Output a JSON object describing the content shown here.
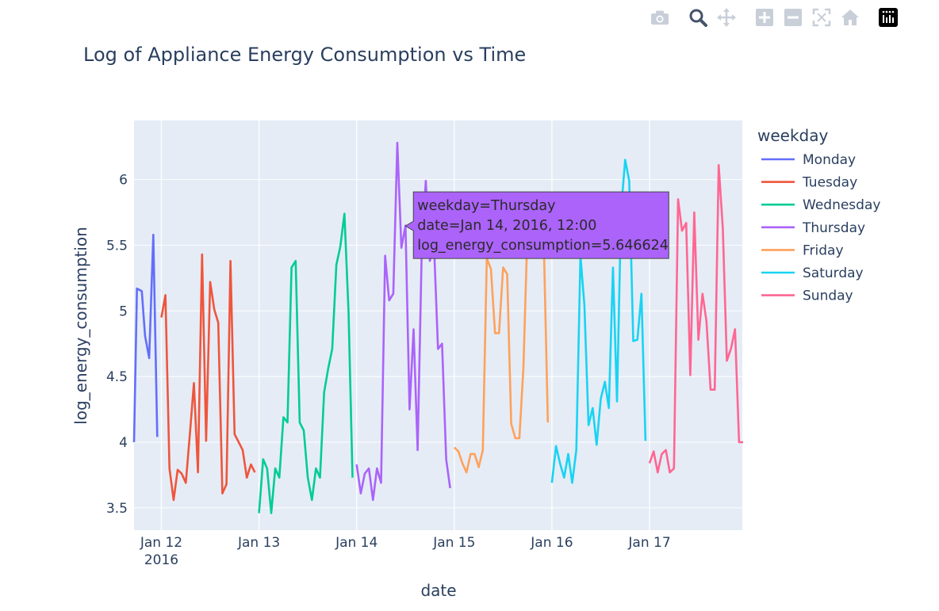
{
  "modebar": {
    "buttons": [
      "camera-icon",
      "zoom-icon",
      "pan-icon",
      "zoom-in-icon",
      "zoom-out-icon",
      "autoscale-icon",
      "reset-axes-icon",
      "plotly-logo"
    ]
  },
  "chart_data": {
    "type": "line",
    "title": "Log of Appliance Energy Consumption vs Time",
    "xlabel": "date",
    "ylabel": "log_energy_consumption",
    "xlim_days": [
      -0.28,
      5.95
    ],
    "ylim": [
      3.33,
      6.45
    ],
    "x_ticks": [
      {
        "day": 0,
        "label": "Jan 12",
        "sublabel": "2016"
      },
      {
        "day": 1,
        "label": "Jan 13"
      },
      {
        "day": 2,
        "label": "Jan 14"
      },
      {
        "day": 3,
        "label": "Jan 15"
      },
      {
        "day": 4,
        "label": "Jan 16"
      },
      {
        "day": 5,
        "label": "Jan 17"
      }
    ],
    "y_ticks": [
      3.5,
      4,
      4.5,
      5,
      5.5,
      6
    ],
    "y_tick_labels": [
      "3.5",
      "4",
      "4.5",
      "5",
      "5.5",
      "6"
    ],
    "legend_title": "weekday",
    "x_unit": "days since Jan 12, 2016 00:00 (hourly samples)",
    "series": [
      {
        "name": "Monday",
        "color": "#636efa",
        "x": [
          -0.28,
          -0.25,
          -0.2,
          -0.167,
          -0.125,
          -0.083,
          -0.042,
          0.0
        ],
        "y": [
          4.0,
          5.17,
          5.15,
          4.81,
          4.64,
          5.58,
          4.04,
          null
        ]
      },
      {
        "name": "Tuesday",
        "color": "#EF553B",
        "x": [
          0.0,
          0.042,
          0.083,
          0.125,
          0.167,
          0.208,
          0.25,
          0.292,
          0.333,
          0.375,
          0.417,
          0.458,
          0.5,
          0.542,
          0.583,
          0.625,
          0.667,
          0.708,
          0.75,
          0.792,
          0.833,
          0.875,
          0.917,
          0.958
        ],
        "y": [
          4.95,
          5.12,
          3.8,
          3.56,
          3.79,
          3.76,
          3.69,
          4.06,
          4.45,
          3.77,
          5.43,
          4.01,
          5.22,
          5.01,
          4.91,
          3.61,
          3.68,
          5.38,
          4.06,
          4.0,
          3.94,
          3.73,
          3.83,
          3.77
        ]
      },
      {
        "name": "Wednesday",
        "color": "#00cc96",
        "x": [
          1.0,
          1.042,
          1.083,
          1.125,
          1.167,
          1.208,
          1.25,
          1.292,
          1.333,
          1.375,
          1.417,
          1.458,
          1.5,
          1.542,
          1.583,
          1.625,
          1.667,
          1.708,
          1.75,
          1.792,
          1.833,
          1.875,
          1.917,
          1.958
        ],
        "y": [
          3.46,
          3.87,
          3.8,
          3.46,
          3.8,
          3.73,
          4.19,
          4.15,
          5.33,
          5.38,
          4.15,
          4.09,
          3.73,
          3.56,
          3.8,
          3.73,
          4.38,
          4.56,
          4.71,
          5.35,
          5.49,
          5.74,
          4.99,
          3.73
        ]
      },
      {
        "name": "Thursday",
        "color": "#ab63fa",
        "x": [
          2.0,
          2.042,
          2.083,
          2.125,
          2.167,
          2.208,
          2.25,
          2.292,
          2.333,
          2.375,
          2.417,
          2.458,
          2.5,
          2.542,
          2.583,
          2.625,
          2.667,
          2.708,
          2.75,
          2.792,
          2.833,
          2.875,
          2.917,
          2.958
        ],
        "y": [
          3.83,
          3.61,
          3.76,
          3.8,
          3.56,
          3.8,
          3.69,
          5.42,
          5.08,
          5.13,
          6.28,
          5.48,
          5.65,
          4.25,
          4.86,
          3.94,
          5.47,
          5.99,
          5.38,
          5.51,
          4.71,
          4.75,
          3.87,
          3.65
        ]
      },
      {
        "name": "Friday",
        "color": "#FFA15A",
        "x": [
          3.0,
          3.042,
          3.083,
          3.125,
          3.167,
          3.208,
          3.25,
          3.292,
          3.333,
          3.375,
          3.417,
          3.458,
          3.5,
          3.542,
          3.583,
          3.625,
          3.667,
          3.708,
          3.75,
          3.792,
          3.833,
          3.875,
          3.917,
          3.958
        ],
        "y": [
          3.96,
          3.93,
          3.84,
          3.77,
          3.91,
          3.91,
          3.81,
          3.94,
          5.4,
          5.32,
          4.83,
          4.83,
          5.33,
          5.28,
          4.14,
          4.03,
          4.03,
          4.57,
          5.62,
          5.49,
          5.53,
          5.44,
          5.52,
          4.15
        ]
      },
      {
        "name": "Saturday",
        "color": "#19d3f3",
        "x": [
          4.0,
          4.042,
          4.083,
          4.125,
          4.167,
          4.208,
          4.25,
          4.292,
          4.333,
          4.375,
          4.417,
          4.458,
          4.5,
          4.542,
          4.583,
          4.625,
          4.667,
          4.708,
          4.75,
          4.792,
          4.833,
          4.875,
          4.917,
          4.958
        ],
        "y": [
          3.69,
          3.97,
          3.84,
          3.73,
          3.91,
          3.69,
          3.94,
          5.42,
          5.04,
          4.13,
          4.26,
          3.98,
          4.33,
          4.46,
          4.26,
          5.33,
          4.31,
          5.77,
          6.15,
          5.99,
          4.77,
          4.78,
          5.13,
          4.01
        ]
      },
      {
        "name": "Sunday",
        "color": "#FF6692",
        "x": [
          5.0,
          5.042,
          5.083,
          5.125,
          5.167,
          5.208,
          5.25,
          5.292,
          5.333,
          5.375,
          5.417,
          5.458,
          5.5,
          5.542,
          5.583,
          5.625,
          5.667,
          5.708,
          5.75,
          5.792,
          5.833,
          5.875,
          5.917,
          5.958
        ],
        "y": [
          3.84,
          3.93,
          3.77,
          3.91,
          3.94,
          3.77,
          3.8,
          5.85,
          5.61,
          5.67,
          4.51,
          5.75,
          4.78,
          5.13,
          4.92,
          4.4,
          4.4,
          6.11,
          5.63,
          4.62,
          4.71,
          4.86,
          4.0,
          4.0
        ]
      }
    ],
    "hover": {
      "series": "Thursday",
      "x": 2.5,
      "y": 5.646624,
      "lines": [
        "weekday=Thursday",
        "date=Jan 14, 2016, 12:00",
        "log_energy_consumption=5.646624"
      ]
    }
  }
}
